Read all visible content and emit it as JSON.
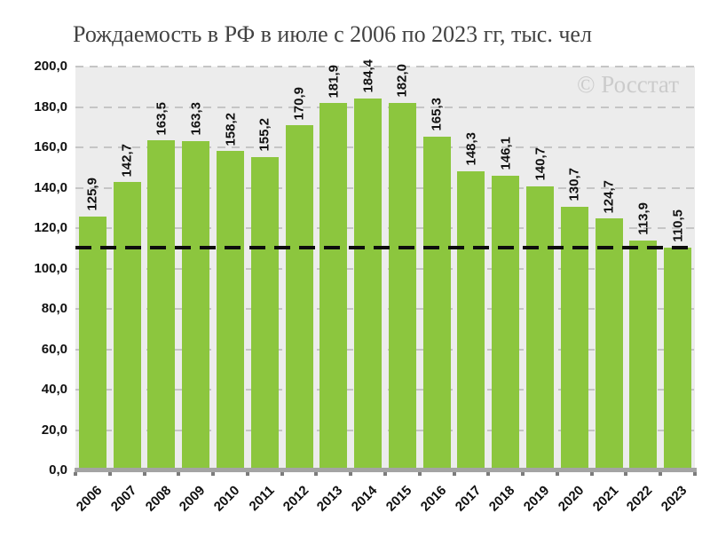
{
  "title": "Рождаемость в РФ в июле с 2006 по 2023 гг, тыс. чел",
  "watermark": "© Росстат",
  "chart_data": {
    "type": "bar",
    "title": "Рождаемость в РФ в июле с 2006 по 2023 гг, тыс. чел",
    "categories": [
      "2006",
      "2007",
      "2008",
      "2009",
      "2010",
      "2011",
      "2012",
      "2013",
      "2014",
      "2015",
      "2016",
      "2017",
      "2018",
      "2019",
      "2020",
      "2021",
      "2022",
      "2023"
    ],
    "values": [
      125.9,
      142.7,
      163.5,
      163.3,
      158.2,
      155.2,
      170.9,
      181.9,
      184.4,
      182.0,
      165.3,
      148.3,
      146.1,
      140.7,
      130.7,
      124.7,
      113.9,
      110.5
    ],
    "value_labels": [
      "125,9",
      "142,7",
      "163,5",
      "163,3",
      "158,2",
      "155,2",
      "170,9",
      "181,9",
      "184,4",
      "182,0",
      "165,3",
      "148,3",
      "146,1",
      "140,7",
      "130,7",
      "124,7",
      "113,9",
      "110,5"
    ],
    "xlabel": "",
    "ylabel": "",
    "ylim": [
      0,
      200
    ],
    "ytick_step": 20,
    "ytick_labels": [
      "0,0",
      "20,0",
      "40,0",
      "60,0",
      "80,0",
      "100,0",
      "120,0",
      "140,0",
      "160,0",
      "180,0",
      "200,0"
    ],
    "grid": "horizontal-dashed",
    "legend": "none",
    "value_label_rotation": 90,
    "xtick_label_rotation": 45,
    "reference_line": {
      "value": 110.5,
      "style": "dashed",
      "color": "#0d0d0d"
    },
    "colors": {
      "bar": "#8cc63e",
      "plot_background": "#ececec",
      "gridline": "#c5c5c5",
      "axis_line": "#a4a4a4",
      "axis_tick": "#7c7c7c",
      "title_text": "#424242",
      "label_text": "#111111",
      "watermark_text": "#cbcbcb"
    }
  }
}
